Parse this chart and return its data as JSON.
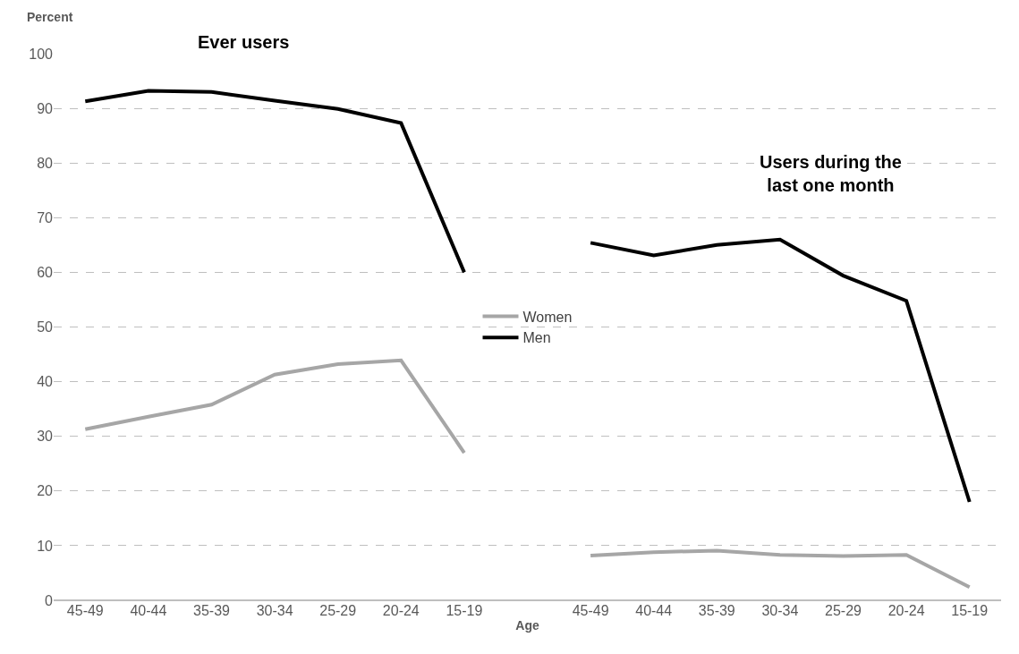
{
  "chart_data": {
    "type": "line",
    "ylabel": "Percent",
    "xlabel": "Age",
    "categories": [
      "45-49",
      "40-44",
      "35-39",
      "30-34",
      "25-29",
      "20-24",
      "15-19",
      null,
      "45-49",
      "40-44",
      "35-39",
      "30-34",
      "25-29",
      "20-24",
      "15-19"
    ],
    "series": [
      {
        "name": "Women",
        "color": "#a6a6a6",
        "values": [
          31.3,
          33.6,
          35.8,
          41.3,
          43.2,
          43.9,
          27.0,
          null,
          8.2,
          8.8,
          9.1,
          8.3,
          8.1,
          8.3,
          2.4
        ]
      },
      {
        "name": "Men",
        "color": "#000000",
        "values": [
          91.3,
          93.2,
          93.0,
          91.4,
          89.9,
          87.3,
          60.0,
          null,
          65.4,
          63.1,
          65.0,
          66.0,
          59.4,
          54.8,
          18.0
        ]
      }
    ],
    "annotations": [
      "Ever users",
      "Users during the\nlast one month"
    ],
    "ylim": [
      0,
      100
    ],
    "yticks": [
      0,
      10,
      20,
      30,
      40,
      50,
      60,
      70,
      80,
      90,
      100
    ],
    "grid": "y",
    "legend": "center",
    "marker": "none",
    "line_style": "solid"
  }
}
